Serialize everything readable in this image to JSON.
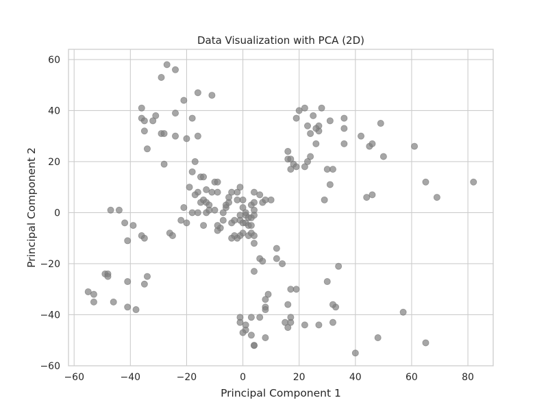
{
  "chart_data": {
    "type": "scatter",
    "title": "Data Visualization with PCA (2D)",
    "xlabel": "Principal Component 1",
    "ylabel": "Principal Component 2",
    "xlim": [
      -62,
      89
    ],
    "ylim": [
      -60,
      64
    ],
    "xticks": [
      -60,
      -40,
      -20,
      0,
      20,
      40,
      60,
      80
    ],
    "yticks": [
      -60,
      -40,
      -20,
      0,
      20,
      40,
      60
    ],
    "grid": true,
    "point_color": "#808080",
    "points": [
      [
        -27,
        58
      ],
      [
        -24,
        56
      ],
      [
        -29,
        53
      ],
      [
        -16,
        47
      ],
      [
        -11,
        46
      ],
      [
        -21,
        44
      ],
      [
        -36,
        41
      ],
      [
        -18,
        37
      ],
      [
        -24,
        39
      ],
      [
        -31,
        38
      ],
      [
        -36,
        37
      ],
      [
        -35,
        36
      ],
      [
        -32,
        36
      ],
      [
        -35,
        32
      ],
      [
        -29,
        31
      ],
      [
        -28,
        31
      ],
      [
        -24,
        30
      ],
      [
        -20,
        29
      ],
      [
        -16,
        30
      ],
      [
        -34,
        25
      ],
      [
        -28,
        19
      ],
      [
        -17,
        20
      ],
      [
        -15,
        14
      ],
      [
        -14,
        14
      ],
      [
        -18,
        16
      ],
      [
        -10,
        12
      ],
      [
        -9,
        12
      ],
      [
        -19,
        10
      ],
      [
        -13,
        9
      ],
      [
        -16,
        8
      ],
      [
        -17,
        7
      ],
      [
        -11,
        8
      ],
      [
        -9,
        8
      ],
      [
        -15,
        4
      ],
      [
        -14,
        5
      ],
      [
        -13,
        4
      ],
      [
        -12,
        3
      ],
      [
        -10,
        1
      ],
      [
        -18,
        0
      ],
      [
        -16,
        0
      ],
      [
        -13,
        0
      ],
      [
        -12,
        1
      ],
      [
        -21,
        2
      ],
      [
        -20,
        -4
      ],
      [
        -14,
        -5
      ],
      [
        -22,
        -3
      ],
      [
        -26,
        -8
      ],
      [
        -25,
        -9
      ],
      [
        -8,
        -6
      ],
      [
        -9,
        -7
      ],
      [
        -9,
        -5
      ],
      [
        -7,
        -3
      ],
      [
        -7,
        0
      ],
      [
        -6,
        2
      ],
      [
        -6,
        3
      ],
      [
        -5,
        4
      ],
      [
        -5,
        6
      ],
      [
        -4,
        8
      ],
      [
        -2,
        8
      ],
      [
        -1,
        10
      ],
      [
        -2,
        5
      ],
      [
        0,
        5
      ],
      [
        0,
        2
      ],
      [
        1,
        0
      ],
      [
        1,
        -1
      ],
      [
        -1,
        -1
      ],
      [
        -4,
        -4
      ],
      [
        -3,
        -3
      ],
      [
        -1,
        -3
      ],
      [
        0,
        -4
      ],
      [
        1,
        -4
      ],
      [
        2,
        -5
      ],
      [
        3,
        -5
      ],
      [
        2,
        -2
      ],
      [
        3,
        -2
      ],
      [
        4,
        -1
      ],
      [
        4,
        1
      ],
      [
        3,
        3
      ],
      [
        4,
        4
      ],
      [
        4,
        8
      ],
      [
        6,
        7
      ],
      [
        7,
        4
      ],
      [
        8,
        5
      ],
      [
        10,
        5
      ],
      [
        0,
        -8
      ],
      [
        -1,
        -9
      ],
      [
        -2,
        -10
      ],
      [
        -3,
        -9
      ],
      [
        -4,
        -10
      ],
      [
        2,
        -9
      ],
      [
        3,
        -8
      ],
      [
        4,
        -9
      ],
      [
        4,
        -12
      ],
      [
        6,
        -18
      ],
      [
        7,
        -19
      ],
      [
        12,
        -14
      ],
      [
        12,
        -18
      ],
      [
        14,
        -20
      ],
      [
        4,
        -23
      ],
      [
        9,
        -32
      ],
      [
        8,
        -34
      ],
      [
        8,
        -37
      ],
      [
        8,
        -38
      ],
      [
        17,
        -30
      ],
      [
        19,
        -30
      ],
      [
        16,
        -36
      ],
      [
        6,
        -41
      ],
      [
        3,
        -41
      ],
      [
        -1,
        -41
      ],
      [
        -1,
        -43
      ],
      [
        1,
        -44
      ],
      [
        1,
        -46
      ],
      [
        0,
        -47
      ],
      [
        3,
        -48
      ],
      [
        8,
        -49
      ],
      [
        4,
        -52
      ],
      [
        4,
        -52
      ],
      [
        15,
        -43
      ],
      [
        17,
        -43
      ],
      [
        17,
        -41
      ],
      [
        16,
        -45
      ],
      [
        22,
        -44
      ],
      [
        27,
        -44
      ],
      [
        32,
        -43
      ],
      [
        30,
        -27
      ],
      [
        33,
        -37
      ],
      [
        32,
        -36
      ],
      [
        34,
        -21
      ],
      [
        40,
        -55
      ],
      [
        48,
        -49
      ],
      [
        57,
        -39
      ],
      [
        65,
        -51
      ],
      [
        -55,
        -31
      ],
      [
        -53,
        -32
      ],
      [
        -53,
        -35
      ],
      [
        -49,
        -24
      ],
      [
        -48,
        -24
      ],
      [
        -48,
        -25
      ],
      [
        -46,
        -35
      ],
      [
        -41,
        -27
      ],
      [
        -41,
        -37
      ],
      [
        -38,
        -38
      ],
      [
        -35,
        -28
      ],
      [
        -34,
        -25
      ],
      [
        -36,
        -9
      ],
      [
        -35,
        -10
      ],
      [
        -41,
        -11
      ],
      [
        -42,
        -4
      ],
      [
        -39,
        -5
      ],
      [
        -47,
        1
      ],
      [
        -44,
        1
      ],
      [
        20,
        40
      ],
      [
        22,
        41
      ],
      [
        25,
        38
      ],
      [
        28,
        41
      ],
      [
        31,
        36
      ],
      [
        36,
        37
      ],
      [
        36,
        33
      ],
      [
        27,
        32
      ],
      [
        27,
        34
      ],
      [
        26,
        33
      ],
      [
        23,
        34
      ],
      [
        24,
        31
      ],
      [
        19,
        37
      ],
      [
        16,
        24
      ],
      [
        16,
        21
      ],
      [
        17,
        21
      ],
      [
        18,
        19
      ],
      [
        19,
        18
      ],
      [
        17,
        17
      ],
      [
        22,
        18
      ],
      [
        23,
        20
      ],
      [
        24,
        22
      ],
      [
        26,
        27
      ],
      [
        30,
        17
      ],
      [
        32,
        17
      ],
      [
        31,
        11
      ],
      [
        29,
        5
      ],
      [
        36,
        27
      ],
      [
        42,
        30
      ],
      [
        45,
        26
      ],
      [
        46,
        27
      ],
      [
        49,
        35
      ],
      [
        50,
        22
      ],
      [
        44,
        6
      ],
      [
        46,
        7
      ],
      [
        61,
        26
      ],
      [
        65,
        12
      ],
      [
        69,
        6
      ],
      [
        82,
        12
      ]
    ]
  }
}
